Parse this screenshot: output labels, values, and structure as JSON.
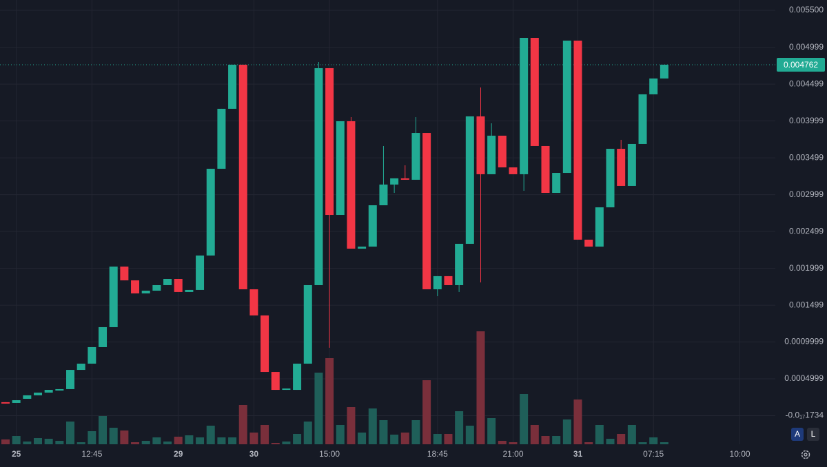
{
  "chart_data": {
    "type": "candlestick",
    "categories": [
      null,
      "25",
      null,
      null,
      null,
      null,
      null,
      null,
      "12:45",
      null,
      null,
      null,
      null,
      null,
      null,
      null,
      "29",
      null,
      null,
      null,
      null,
      null,
      null,
      "30",
      null,
      null,
      null,
      null,
      null,
      null,
      "15:00",
      null,
      null,
      null,
      null,
      null,
      null,
      null,
      null,
      null,
      "18:45",
      null,
      null,
      null,
      null,
      null,
      null,
      "21:00",
      null,
      null,
      null,
      null,
      null,
      "31",
      null,
      null,
      null,
      null,
      null,
      null,
      "07:15",
      null,
      null,
      null,
      null,
      null,
      null,
      null,
      "10:00"
    ],
    "open": [
      0.000183,
      0.000173,
      0.000229,
      0.000276,
      0.000313,
      0.000341,
      0.00036,
      0.000621,
      0.000706,
      0.00093,
      0.001201,
      0.002023,
      0.001836,
      0.001659,
      0.001696,
      0.001771,
      0.001855,
      0.001678,
      0.001706,
      0.002173,
      0.00335,
      0.004164,
      0.004762,
      0.001715,
      0.00136,
      0.000593,
      0.00035,
      0.00035,
      0.000706,
      0.001771,
      0.004715,
      0.002724,
      0.003995,
      0.002266,
      0.002294,
      0.002855,
      0.003136,
      0.00322,
      0.003201,
      0.003836,
      0.001715,
      0.001893,
      0.001771,
      0.002332,
      0.004061,
      0.003276,
      0.003799,
      0.003369,
      0.003276,
      0.005126,
      0.003659,
      0.003023,
      0.003294,
      0.005089,
      0.002388,
      0.002294,
      0.002827,
      0.003621,
      0.003117,
      0.003687,
      0.00436,
      0.004575,
      null,
      null,
      null,
      null,
      null,
      null,
      null
    ],
    "high": [
      0.000183,
      0.00021,
      0.000276,
      0.000313,
      0.00035,
      0.00036,
      0.000621,
      0.000706,
      0.00093,
      0.001201,
      0.002023,
      0.002023,
      0.001836,
      0.001696,
      0.001771,
      0.001855,
      0.001855,
      0.001706,
      0.002173,
      0.00335,
      0.004164,
      0.004762,
      0.004762,
      0.001715,
      0.00136,
      0.000593,
      0.000369,
      0.000706,
      0.001771,
      0.004799,
      0.004715,
      0.003995,
      0.004051,
      0.002294,
      0.002855,
      0.003659,
      0.00322,
      0.003397,
      0.004051,
      0.003836,
      0.001893,
      0.001893,
      0.002332,
      0.004061,
      0.004453,
      0.003967,
      0.003799,
      0.003369,
      0.005126,
      0.005126,
      0.003659,
      0.003294,
      0.005089,
      0.005089,
      0.002388,
      0.002827,
      0.003621,
      0.003743,
      0.003687,
      0.00436,
      0.004575,
      0.004762,
      null,
      null,
      null,
      null,
      null,
      null,
      null
    ],
    "low": [
      0.000164,
      0.000173,
      0.000229,
      0.000276,
      0.000313,
      0.000341,
      0.00036,
      0.000621,
      0.000706,
      0.00093,
      0.001201,
      0.001836,
      0.001659,
      0.001659,
      0.001696,
      0.001771,
      0.001678,
      0.001678,
      0.001706,
      0.002173,
      0.00335,
      0.004164,
      0.001715,
      0.00136,
      0.000593,
      0.00035,
      0.00035,
      0.00035,
      0.000706,
      0.001771,
      0.000921,
      0.002724,
      0.002266,
      0.002266,
      0.002294,
      0.002855,
      0.003023,
      0.003201,
      0.003201,
      0.001715,
      0.001621,
      0.001771,
      0.001678,
      0.002332,
      0.001808,
      0.003276,
      0.003369,
      0.003276,
      0.003051,
      0.003659,
      0.003023,
      0.003023,
      0.003294,
      0.002388,
      0.002294,
      0.002294,
      0.002827,
      0.003117,
      0.003117,
      0.003687,
      0.00436,
      0.004575,
      null,
      null,
      null,
      null,
      null,
      null,
      null
    ],
    "close": [
      0.000164,
      0.00021,
      0.000276,
      0.000313,
      0.00035,
      0.00036,
      0.000621,
      0.000706,
      0.00093,
      0.001201,
      0.002023,
      0.001836,
      0.001659,
      0.001696,
      0.001771,
      0.001855,
      0.001678,
      0.001706,
      0.002173,
      0.00335,
      0.004164,
      0.004762,
      0.001715,
      0.00136,
      0.000593,
      0.00035,
      0.000369,
      0.000706,
      0.001771,
      0.004715,
      0.002724,
      0.003995,
      0.002266,
      0.002294,
      0.002855,
      0.003136,
      0.00322,
      0.003201,
      0.003836,
      0.001715,
      0.001893,
      0.001771,
      0.002332,
      0.004061,
      0.003276,
      0.003799,
      0.003369,
      0.003276,
      0.005126,
      0.003659,
      0.003023,
      0.003294,
      0.005089,
      0.002388,
      0.002294,
      0.002827,
      0.003621,
      0.003117,
      0.003687,
      0.00436,
      0.004575,
      0.004762,
      null,
      null,
      null,
      null,
      null,
      null,
      null
    ],
    "volume": [
      7,
      12,
      4,
      9,
      8,
      5,
      33,
      3,
      19,
      41,
      24,
      20,
      3,
      5,
      10,
      4,
      11,
      13,
      10,
      27,
      10,
      10,
      57,
      17,
      28,
      2,
      4,
      15,
      33,
      104,
      125,
      28,
      54,
      17,
      52,
      35,
      14,
      17,
      35,
      93,
      15,
      15,
      48,
      27,
      164,
      38,
      5,
      3,
      73,
      28,
      12,
      12,
      36,
      65,
      3,
      28,
      8,
      15,
      28,
      3,
      10,
      3,
      null,
      null,
      null,
      null,
      null,
      null,
      null
    ],
    "volume_ylim": [
      0,
      645
    ],
    "up_color": "#22ab94",
    "down_color": "#f23645",
    "volume_up_color": "#1f5f59",
    "volume_down_color": "#7a2f3b",
    "ylim": [
      -0.000388,
      0.00564
    ],
    "yticks": [
      {
        "value": -1.734e-18,
        "label": "-0.0₁₇1734"
      },
      0.0004999,
      0.0009999,
      0.001499,
      0.001999,
      0.002499,
      0.002999,
      0.003499,
      0.003999,
      0.004499,
      0.004999,
      {
        "value": 0.0055,
        "label": "0.005500"
      }
    ],
    "last_price": 0.004762,
    "grid": true,
    "buttons": [
      "A",
      "L"
    ]
  }
}
